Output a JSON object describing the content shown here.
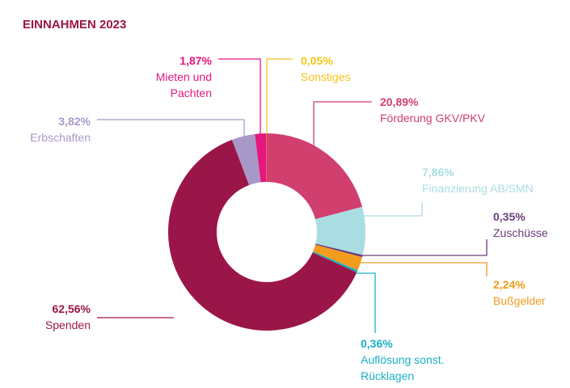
{
  "chart_data": {
    "type": "donut",
    "title": "EINNAHMEN 2023",
    "categories": [
      "Förderung GKV/PKV",
      "Finanzierung AB/SMN",
      "Zuschüsse",
      "Bußgelder",
      "Auflösung sonst. Rücklagen",
      "Spenden",
      "Erbschaften",
      "Mieten und Pachten",
      "Sonstiges"
    ],
    "values": [
      20.89,
      7.86,
      0.35,
      2.24,
      0.36,
      62.56,
      3.82,
      1.87,
      0.05
    ],
    "value_labels": [
      "20,89%",
      "7,86%",
      "0,35%",
      "2,24%",
      "0,36%",
      "62,56%",
      "3,82%",
      "1,87%",
      "0,05%"
    ],
    "colors": [
      "#d13f6f",
      "#a9dde1",
      "#6b3a7a",
      "#f39c1e",
      "#1ab0c8",
      "#9b1648",
      "#a898c8",
      "#e5167d",
      "#f5c518"
    ]
  }
}
